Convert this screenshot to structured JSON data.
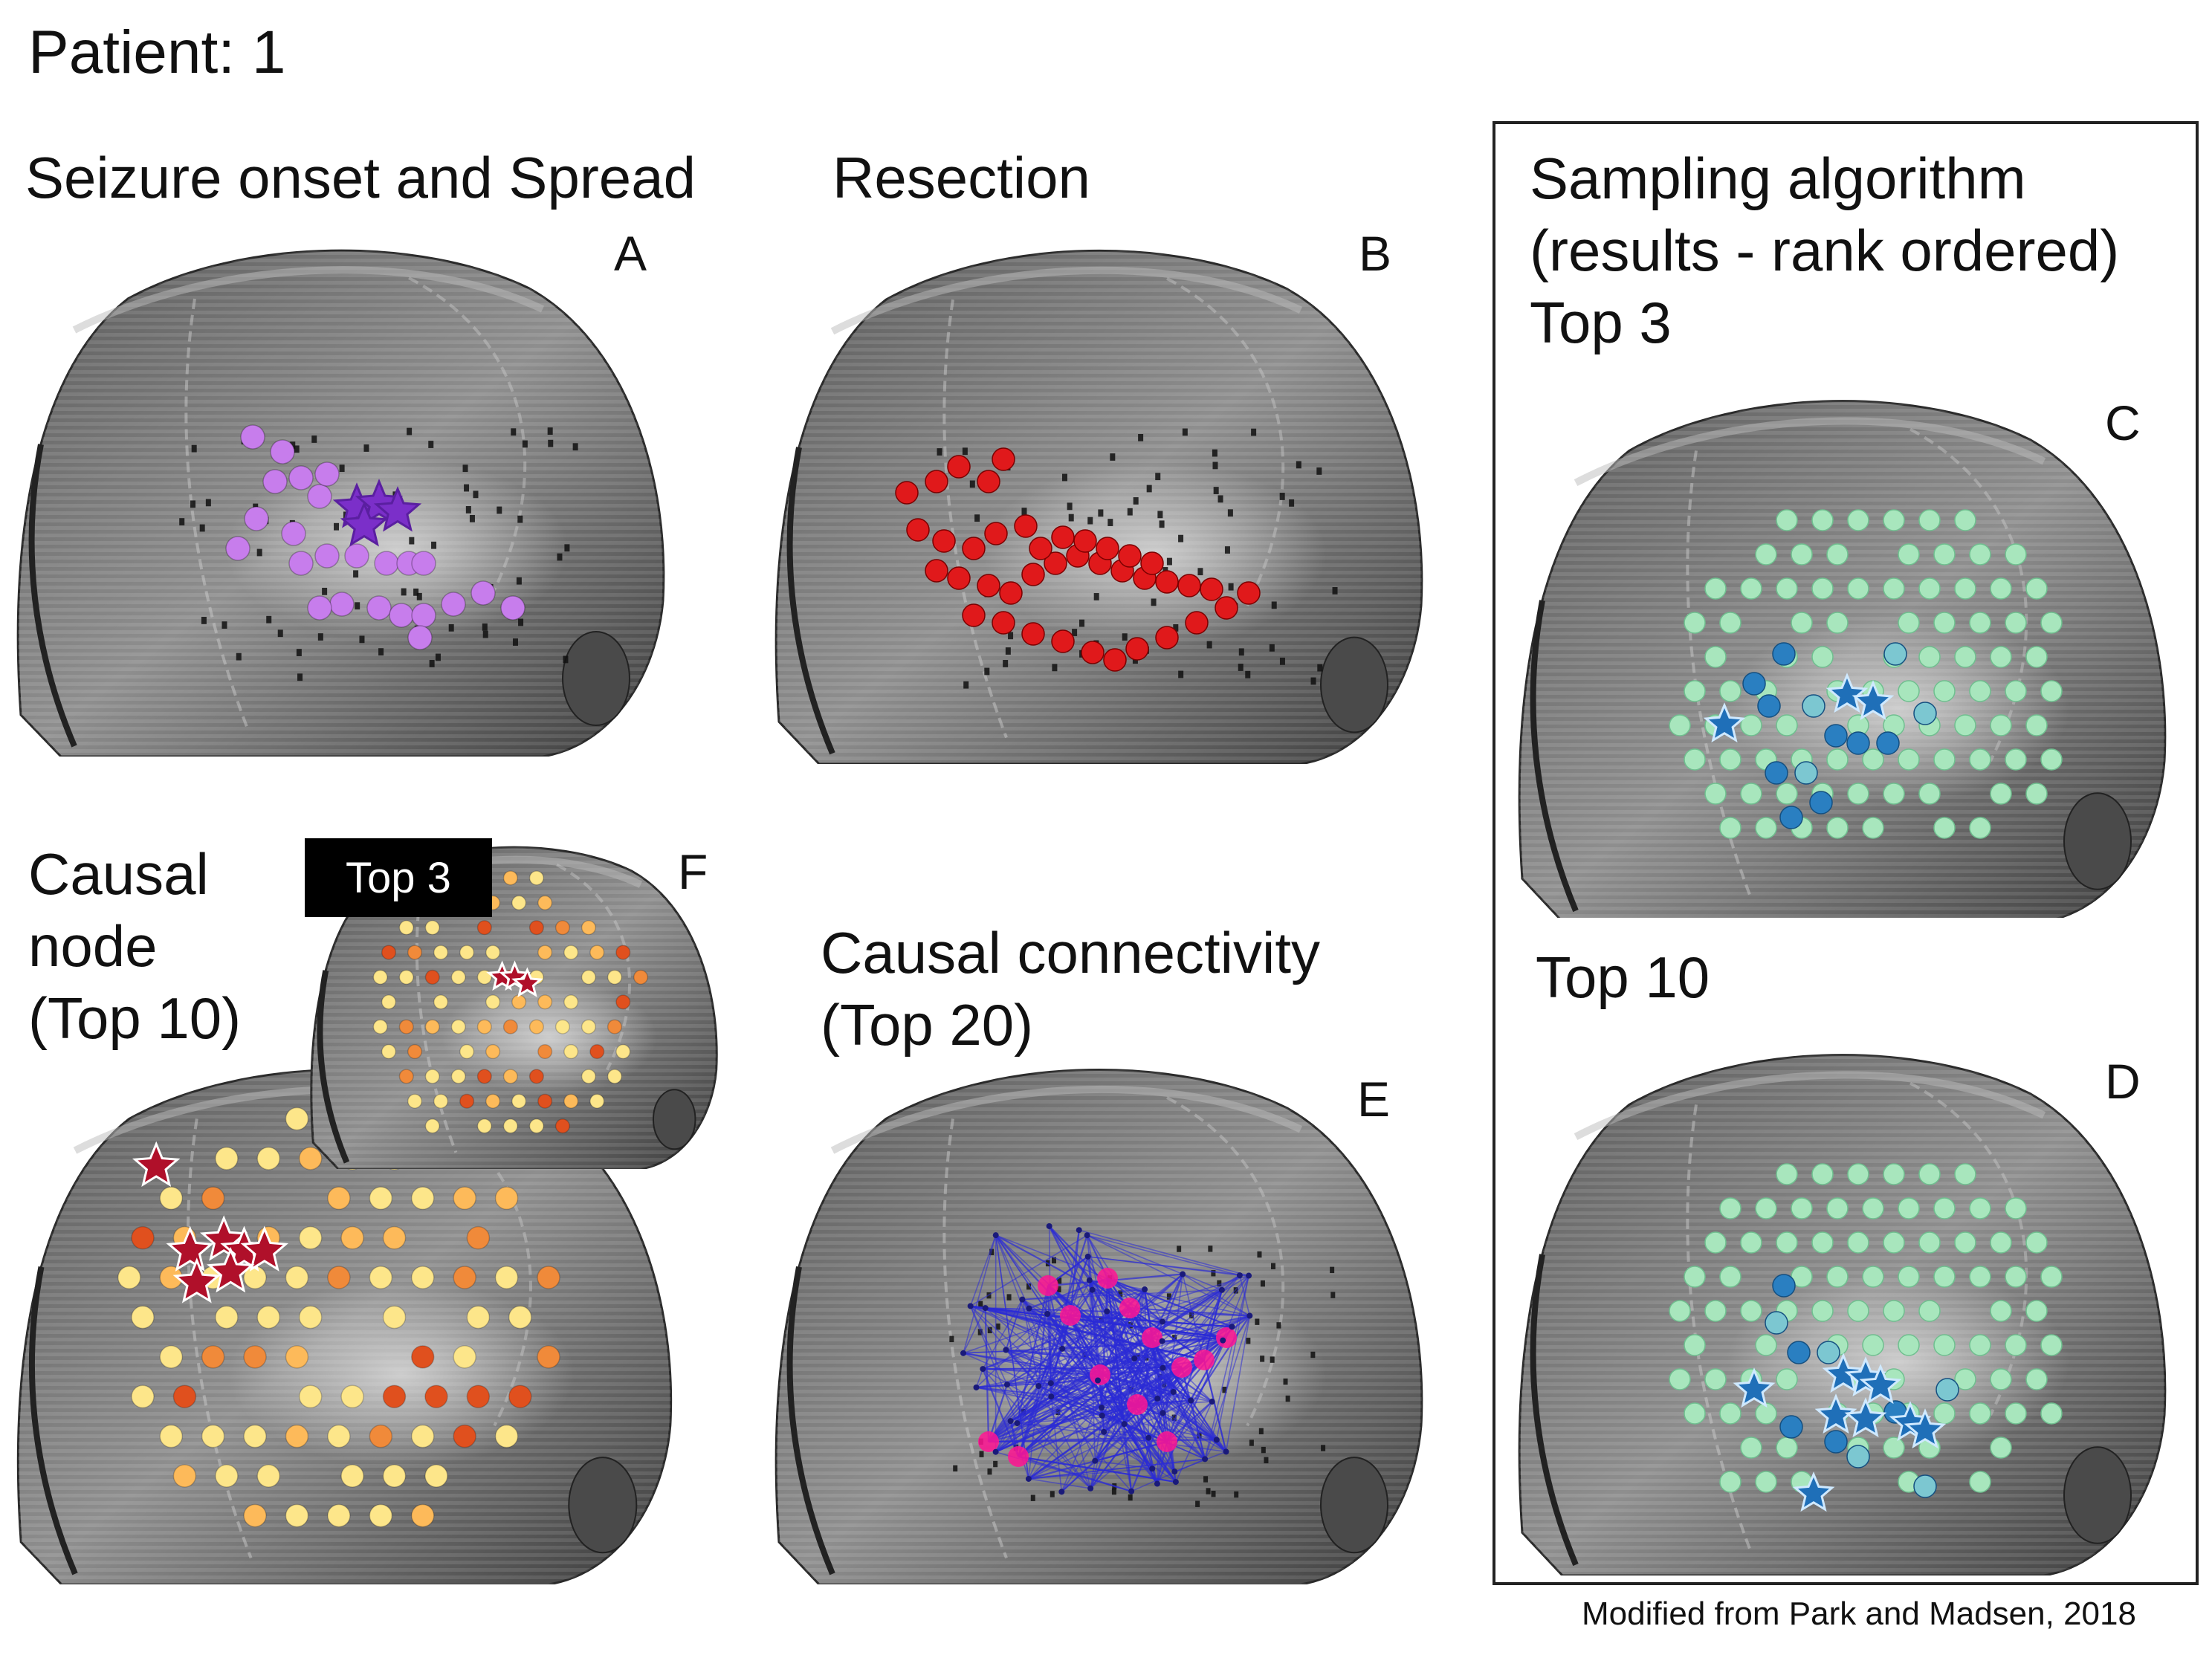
{
  "figure": {
    "title": "Patient: 1",
    "credit": "Modified from Park and Madsen, 2018"
  },
  "panels": {
    "A": {
      "letter": "A",
      "heading": "Seizure onset and Spread",
      "marker_color": "#c77dec",
      "star_color": "#7b2fc9"
    },
    "B": {
      "letter": "B",
      "heading": "Resection",
      "marker_color": "#e0191b"
    },
    "C": {
      "letter": "C",
      "heading_lines": [
        "Sampling algorithm",
        "(results - rank ordered)",
        "Top 3"
      ],
      "marker_color": "#a8e6bd",
      "highlight_color": "#2a7fc1",
      "star_color": "#1f6fb8"
    },
    "D": {
      "letter": "D",
      "heading": "Top 10",
      "marker_color": "#a8e6bd",
      "highlight_color": "#2a7fc1",
      "star_color": "#1f6fb8"
    },
    "E": {
      "letter": "E",
      "heading_lines": [
        "Causal connectivity",
        "(Top 20)"
      ],
      "edge_color": "#2b2bd6",
      "node_color": "#ff1493"
    },
    "F": {
      "letter": "F",
      "heading_lines": [
        "Causal",
        "node",
        "(Top 10)"
      ],
      "inset_tag": "Top 3",
      "marker_colors": [
        "#fde68a",
        "#fdba5a",
        "#f08a3a",
        "#e0501e",
        "#b0102a"
      ],
      "star_color": "#b0102a"
    }
  }
}
